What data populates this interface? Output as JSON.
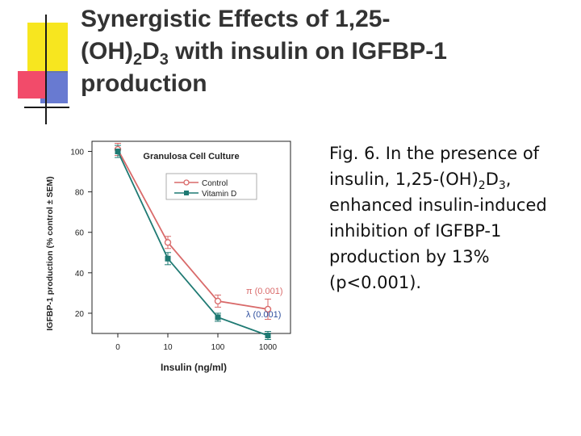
{
  "slide": {
    "title_part1": "Synergistic Effects of 1,25-",
    "title_part2": "(OH)",
    "title_sub1": "2",
    "title_part3": "D",
    "title_sub2": "3",
    "title_part4": " with insulin on IGFBP-1 production",
    "caption_part1": "Fig. 6. In the presence of insulin, 1,25-(OH)",
    "caption_sub1": "2",
    "caption_part2": "D",
    "caption_sub2": "3",
    "caption_part3": ", enhanced insulin-induced inhibition of IGFBP-1 production by 13% (p<0.001)."
  },
  "colors": {
    "accent_yellow": "#f7e61f",
    "accent_red": "#f24b6a",
    "accent_blue": "#4e63c9",
    "control": "#d96a6a",
    "vitamin_d": "#1f7a73"
  },
  "chart_data": {
    "type": "line",
    "title": "Granulosa Cell Culture",
    "xlabel": "Insulin (ng/ml)",
    "ylabel": "IGFBP-1 production (% control ± SEM)",
    "categories": [
      "0",
      "10",
      "100",
      "1000"
    ],
    "yticks": [
      "20",
      "40",
      "60",
      "80",
      "100"
    ],
    "ylim": [
      10,
      105
    ],
    "grid": false,
    "legend_position": "top-right",
    "series": [
      {
        "name": "Control",
        "values": [
          101,
          55,
          26,
          22
        ],
        "errors": [
          3,
          3,
          3,
          5
        ],
        "marker": "circle-open"
      },
      {
        "name": "Vitamin D",
        "values": [
          100,
          47,
          18,
          9
        ],
        "errors": [
          3,
          3,
          2,
          2
        ],
        "marker": "square-filled"
      }
    ],
    "annotations": [
      "π (0.001)",
      "λ (0.001)"
    ]
  }
}
